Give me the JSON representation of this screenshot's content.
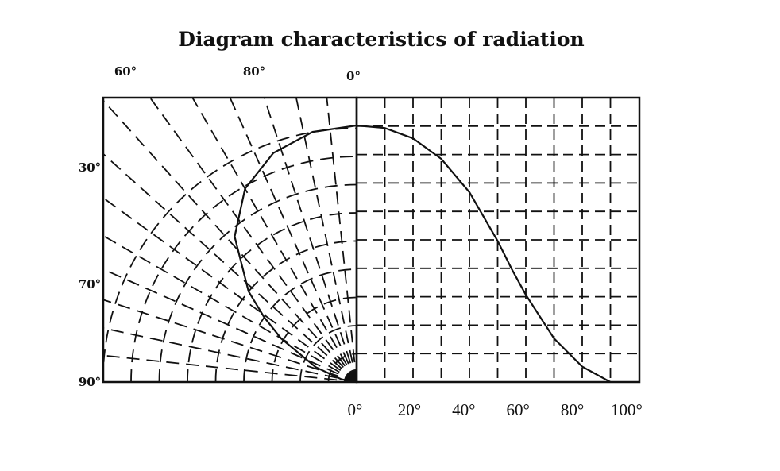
{
  "chart_data": [
    {
      "type": "line",
      "title": "Diagram characteristics of radiation",
      "xlabel": "",
      "ylabel": "",
      "x_tick_labels": [
        "0°",
        "20°",
        "40°",
        "60°",
        "80°",
        "100°"
      ],
      "xlim": [
        0,
        100
      ],
      "ylim": [
        0,
        1.1
      ],
      "grid": true,
      "series": [
        {
          "x": [
            0,
            10,
            20,
            30,
            40,
            50,
            55,
            60,
            70,
            80,
            90
          ],
          "y": [
            1.0,
            0.99,
            0.95,
            0.87,
            0.74,
            0.55,
            0.44,
            0.34,
            0.17,
            0.06,
            0.0
          ]
        }
      ]
    },
    {
      "type": "polar",
      "angle_labels": [
        "90°",
        "70°",
        "30°",
        "60°",
        "80°",
        "0°"
      ],
      "radial_circles": 9,
      "radial_lines": 15,
      "grid": true
    }
  ]
}
